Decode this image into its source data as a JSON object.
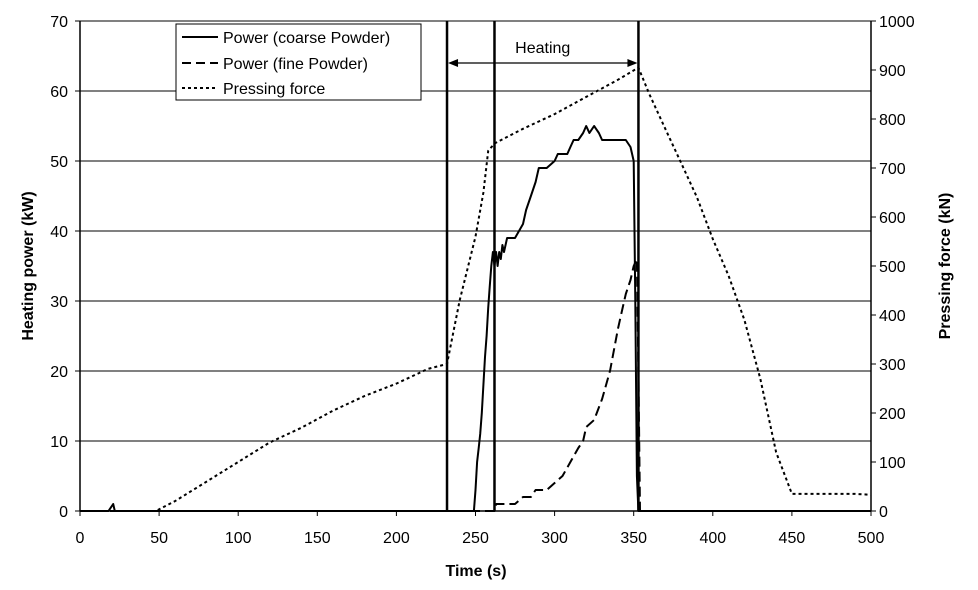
{
  "chart_data": {
    "type": "line",
    "xlabel": "Time (s)",
    "ylabel": "Heating power (kW)",
    "y2label": "Pressing force (kN)",
    "xlim": [
      0,
      500
    ],
    "ylim": [
      0,
      70
    ],
    "y2lim": [
      0,
      1000
    ],
    "xticks": [
      0,
      50,
      100,
      150,
      200,
      250,
      300,
      350,
      400,
      450,
      500
    ],
    "yticks": [
      0,
      10,
      20,
      30,
      40,
      50,
      60,
      70
    ],
    "y2ticks": [
      0,
      100,
      200,
      300,
      400,
      500,
      600,
      700,
      800,
      900,
      1000
    ],
    "grid": "horizontal",
    "legend_position": "top-left",
    "colors": {
      "series": "#000000",
      "grid": "#000000",
      "background": "#ffffff"
    },
    "series": [
      {
        "name": "Power (coarse Powder)",
        "axis": "left",
        "style": "solid",
        "x": [
          0,
          18,
          21,
          22,
          24,
          248,
          249,
          250,
          251,
          252,
          253,
          254,
          255,
          256,
          257,
          258,
          259,
          260,
          261,
          262,
          263,
          264,
          265,
          266,
          267,
          268,
          270,
          272,
          275,
          280,
          282,
          285,
          288,
          290,
          295,
          300,
          302,
          305,
          308,
          310,
          312,
          315,
          318,
          320,
          322,
          325,
          328,
          330,
          335,
          340,
          345,
          348,
          350,
          351,
          352,
          353,
          355,
          500
        ],
        "values": [
          0,
          0,
          1,
          0,
          0,
          0,
          0,
          3,
          7,
          9,
          11,
          14,
          18,
          22,
          25,
          29,
          32,
          35,
          37,
          35,
          37,
          35,
          37,
          36,
          38,
          37,
          39,
          39,
          39,
          41,
          43,
          45,
          47,
          49,
          49,
          50,
          51,
          51,
          51,
          52,
          53,
          53,
          54,
          55,
          54,
          55,
          54,
          53,
          53,
          53,
          53,
          52,
          50,
          30,
          5,
          0,
          0,
          0
        ]
      },
      {
        "name": "Power (fine Powder)",
        "axis": "left",
        "style": "dashed",
        "x": [
          0,
          262,
          263,
          275,
          280,
          285,
          288,
          290,
          295,
          300,
          305,
          310,
          315,
          318,
          320,
          325,
          330,
          335,
          340,
          343,
          345,
          348,
          350,
          352,
          353,
          354,
          500
        ],
        "values": [
          0,
          0,
          1,
          1,
          2,
          2,
          3,
          3,
          3,
          4,
          5,
          7,
          9,
          10,
          12,
          13,
          16,
          20,
          26,
          29,
          31,
          33,
          35,
          36,
          20,
          0,
          0
        ]
      },
      {
        "name": "Pressing force",
        "axis": "right",
        "style": "dotted",
        "x": [
          0,
          48,
          60,
          80,
          100,
          120,
          140,
          160,
          180,
          200,
          220,
          232,
          240,
          250,
          255,
          258,
          262,
          280,
          300,
          320,
          340,
          353,
          360,
          370,
          380,
          390,
          400,
          410,
          420,
          430,
          440,
          450,
          460,
          470,
          480,
          490,
          500
        ],
        "values": [
          0,
          0,
          20,
          60,
          100,
          140,
          170,
          205,
          235,
          260,
          290,
          300,
          430,
          560,
          650,
          735,
          750,
          780,
          810,
          845,
          880,
          905,
          850,
          780,
          710,
          640,
          555,
          480,
          390,
          270,
          120,
          35,
          35,
          35,
          35,
          35,
          33
        ]
      }
    ],
    "vertical_lines": [
      232,
      262,
      353
    ],
    "annotation": {
      "text": "Heating",
      "x_start": 232,
      "x_end": 353,
      "y": 64
    }
  }
}
